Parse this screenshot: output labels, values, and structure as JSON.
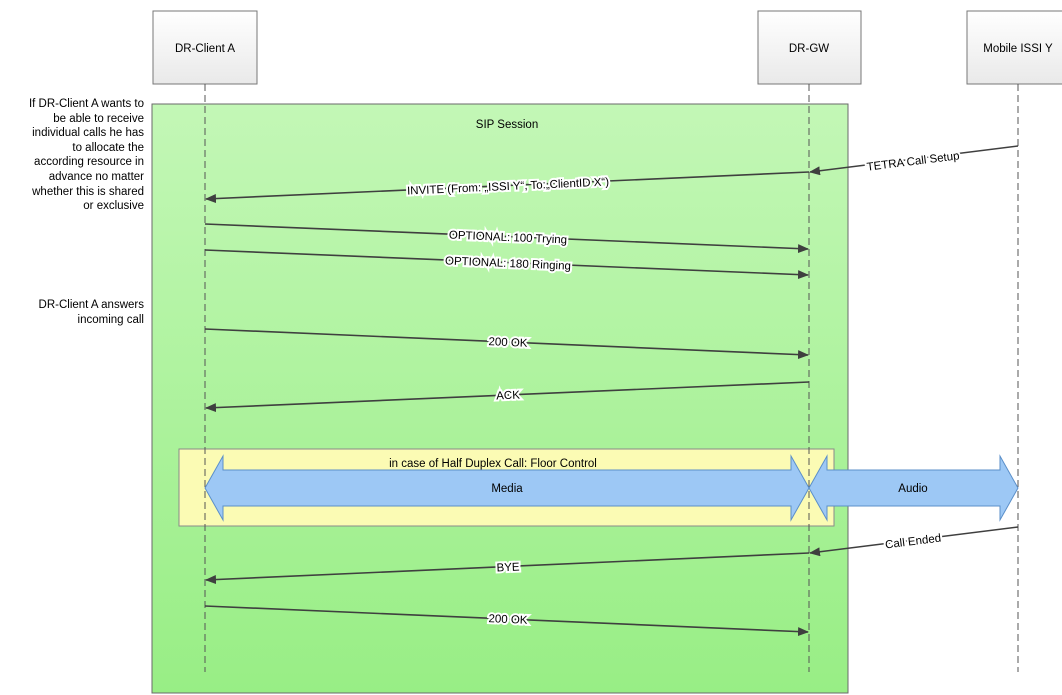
{
  "participants": [
    {
      "id": "client",
      "label": "DR-Client A"
    },
    {
      "id": "gw",
      "label": "DR-GW"
    },
    {
      "id": "mobile",
      "label": "Mobile ISSI Y"
    }
  ],
  "session": {
    "label": "SIP Session"
  },
  "notes": {
    "resource": "If DR-Client A wants to\nbe able to receive\nindividual calls he has\nto allocate the\naccording resource in\nadvance no matter\nwhether this is shared\nor exclusive",
    "answer": "DR-Client A answers\nincoming call"
  },
  "messages": [
    {
      "from": "mobile",
      "to": "gw",
      "label": "TETRA Call Setup"
    },
    {
      "from": "gw",
      "to": "client",
      "label": "INVITE (From: „ISSI Y“, To:„ClientID X“)"
    },
    {
      "from": "client",
      "to": "gw",
      "label": "OPTIONAL: 100 Trying"
    },
    {
      "from": "client",
      "to": "gw",
      "label": "OPTIONAL: 180 Ringing"
    },
    {
      "from": "client",
      "to": "gw",
      "label": "200 OK"
    },
    {
      "from": "gw",
      "to": "client",
      "label": "ACK"
    },
    {
      "from": "mobile",
      "to": "gw",
      "label": "Call Ended"
    },
    {
      "from": "gw",
      "to": "client",
      "label": "BYE"
    },
    {
      "from": "client",
      "to": "gw",
      "label": "200 OK"
    }
  ],
  "floor_control": {
    "label": "in case of Half Duplex Call: Floor Control"
  },
  "media": {
    "label": "Media"
  },
  "audio": {
    "label": "Audio"
  },
  "colors": {
    "session_fill": "#b7f5a8",
    "floor_fill": "#fbfbb4",
    "arrow_fill": "#9dc8f5",
    "arrow_stroke": "#5b8fc9",
    "line": "#3f3f3f"
  }
}
